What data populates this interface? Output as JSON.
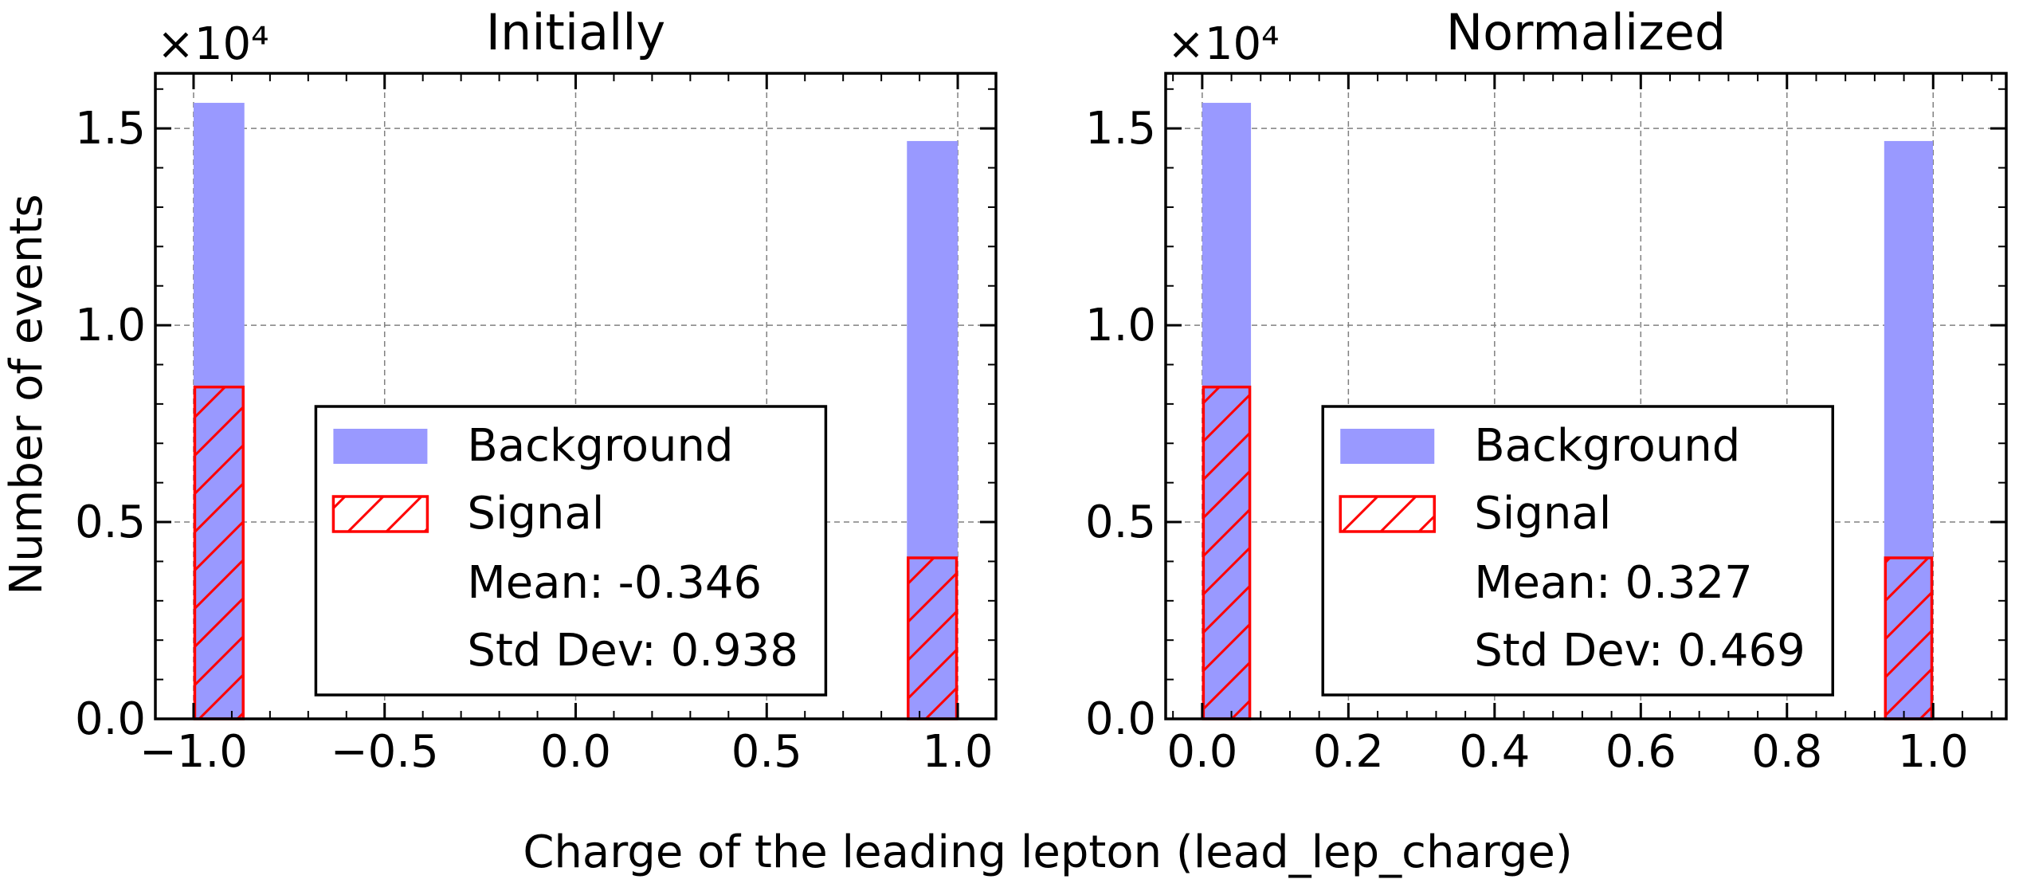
{
  "figure": {
    "ylabel": "Number of events",
    "xlabel": "Charge of the leading lepton (lead_lep_charge)"
  },
  "colors": {
    "background_fill": "#9999ff",
    "signal_edge": "#ff0000",
    "grid": "#808080",
    "axes": "#000000"
  },
  "chart_data": [
    {
      "type": "bar",
      "title": "Initially",
      "xlim": [
        -1.1,
        1.1
      ],
      "ylim": [
        0,
        16400
      ],
      "y_multiplier": "×10⁴",
      "xticks": [
        "−1.0",
        "−0.5",
        "0.0",
        "0.5",
        "1.0"
      ],
      "xtick_values": [
        -1.0,
        -0.5,
        0.0,
        0.5,
        1.0
      ],
      "yticks": [
        "0.0",
        "0.5",
        "1.0",
        "1.5"
      ],
      "ytick_values": [
        0,
        5000,
        10000,
        15000
      ],
      "bin_width": 0.133,
      "grid": true,
      "series": [
        {
          "name": "Background",
          "style": "filled",
          "bins": [
            {
              "x0": -1.0,
              "value": 15650
            },
            {
              "x0": 0.867,
              "value": 14680
            }
          ]
        },
        {
          "name": "Signal",
          "style": "hatched",
          "bins": [
            {
              "x0": -1.0,
              "value": 8430
            },
            {
              "x0": 0.867,
              "value": 4090
            }
          ]
        }
      ],
      "legend": {
        "entries": [
          "Background",
          "Signal"
        ],
        "stats": [
          "Mean: -0.346",
          "Std Dev: 0.938"
        ],
        "placement": "lower-center"
      }
    },
    {
      "type": "bar",
      "title": "Normalized",
      "xlim": [
        -0.05,
        1.1
      ],
      "ylim": [
        0,
        16400
      ],
      "y_multiplier": "×10⁴",
      "xticks": [
        "0.0",
        "0.2",
        "0.4",
        "0.6",
        "0.8",
        "1.0"
      ],
      "xtick_values": [
        0.0,
        0.2,
        0.4,
        0.6,
        0.8,
        1.0
      ],
      "yticks": [
        "0.0",
        "0.5",
        "1.0",
        "1.5"
      ],
      "ytick_values": [
        0,
        5000,
        10000,
        15000
      ],
      "bin_width": 0.0667,
      "grid": true,
      "series": [
        {
          "name": "Background",
          "style": "filled",
          "bins": [
            {
              "x0": 0.0,
              "value": 15650
            },
            {
              "x0": 0.933,
              "value": 14680
            }
          ]
        },
        {
          "name": "Signal",
          "style": "hatched",
          "bins": [
            {
              "x0": 0.0,
              "value": 8430
            },
            {
              "x0": 0.933,
              "value": 4090
            }
          ]
        }
      ],
      "legend": {
        "entries": [
          "Background",
          "Signal"
        ],
        "stats": [
          "Mean: 0.327",
          "Std Dev: 0.469"
        ],
        "placement": "lower-center"
      }
    }
  ]
}
